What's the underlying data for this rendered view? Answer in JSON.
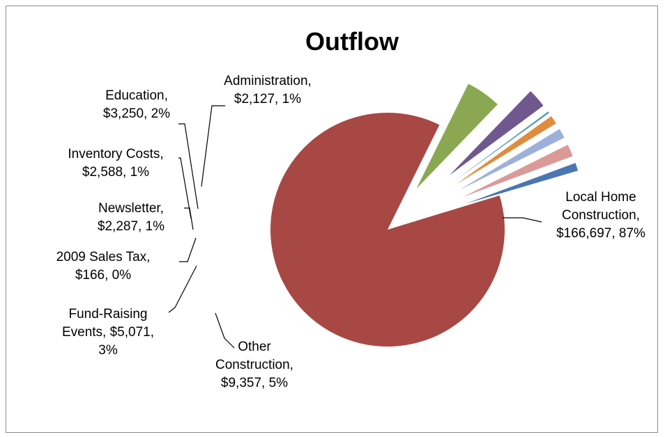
{
  "chart_data": {
    "type": "pie",
    "title": "Outflow",
    "slices": [
      {
        "name": "Local Home Construction",
        "value": 166697,
        "percent": "87%",
        "value_text": "$166,697",
        "color": "#A84844",
        "lines": [
          "Local Home",
          "Construction,",
          "$166,697, 87%"
        ]
      },
      {
        "name": "Other Construction",
        "value": 9357,
        "percent": "5%",
        "value_text": "$9,357",
        "color": "#8AA851",
        "lines": [
          "Other",
          "Construction,",
          "$9,357, 5%"
        ]
      },
      {
        "name": "Fund-Raising Events",
        "value": 5071,
        "percent": "3%",
        "value_text": "$5,071",
        "color": "#70588F",
        "lines": [
          "Fund-Raising",
          "Events, $5,071,",
          "3%"
        ]
      },
      {
        "name": "2009 Sales Tax",
        "value": 166,
        "percent": "0%",
        "value_text": "$166",
        "color": "#5A9BB0",
        "lines": [
          "2009 Sales Tax,",
          "$166, 0%"
        ]
      },
      {
        "name": "Newsletter",
        "value": 2287,
        "percent": "1%",
        "value_text": "$2,287",
        "color": "#E08C3C",
        "lines": [
          "Newsletter,",
          "$2,287, 1%"
        ]
      },
      {
        "name": "Inventory Costs",
        "value": 2588,
        "percent": "1%",
        "value_text": "$2,588",
        "color": "#9DB0DA",
        "lines": [
          "Inventory Costs,",
          "$2,588, 1%"
        ]
      },
      {
        "name": "Education",
        "value": 3250,
        "percent": "2%",
        "value_text": "$3,250",
        "color": "#DA9A98",
        "lines": [
          "Education,",
          "$3,250, 2%"
        ]
      },
      {
        "name": "Administration",
        "value": 2127,
        "percent": "1%",
        "value_text": "$2,127",
        "color": "#4A76B3",
        "lines": [
          "Administration,",
          "$2,127, 1%"
        ]
      }
    ],
    "legend": "none",
    "data_labels": "category, value, percentage"
  }
}
